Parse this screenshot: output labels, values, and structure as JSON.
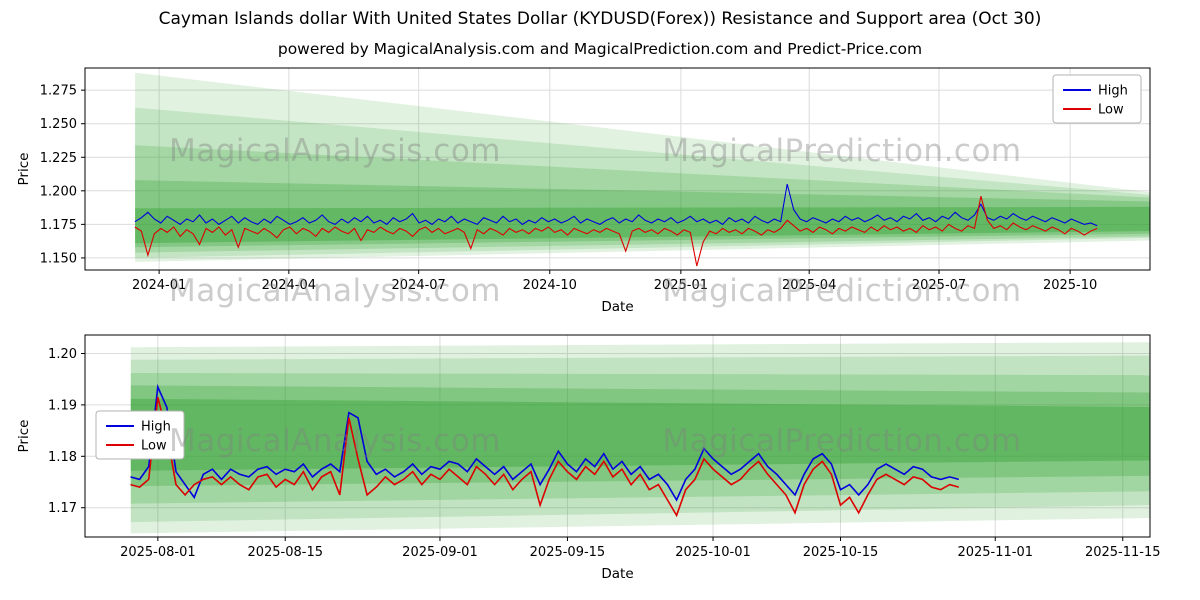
{
  "figure": {
    "title": "Cayman Islands dollar With United States Dollar (KYDUSD(Forex)) Resistance and Support area (Oct 30)",
    "subtitle": "powered by MagicalAnalysis.com and MagicalPrediction.com and Predict-Price.com",
    "watermark_left": "MagicalAnalysis.com",
    "watermark_right": "MagicalPrediction.com"
  },
  "chart_data": [
    {
      "type": "line",
      "title": "",
      "xlabel": "Date",
      "ylabel": "Price",
      "grid": true,
      "legend_pos": "upper-right",
      "line_width": 1.1,
      "ylim": [
        1.141,
        1.2915
      ],
      "x_ticks": [
        {
          "f": 0.0696,
          "label": "2024-01"
        },
        {
          "f": 0.1914,
          "label": "2024-04"
        },
        {
          "f": 0.3133,
          "label": "2024-07"
        },
        {
          "f": 0.4364,
          "label": "2024-10"
        },
        {
          "f": 0.5595,
          "label": "2025-01"
        },
        {
          "f": 0.68,
          "label": "2025-04"
        },
        {
          "f": 0.8019,
          "label": "2025-07"
        },
        {
          "f": 0.925,
          "label": "2025-10"
        }
      ],
      "y_ticks": [
        {
          "v": 1.15,
          "label": "1.150"
        },
        {
          "v": 1.175,
          "label": "1.175"
        },
        {
          "v": 1.2,
          "label": "1.200"
        },
        {
          "v": 1.225,
          "label": "1.225"
        },
        {
          "v": 1.25,
          "label": "1.250"
        },
        {
          "v": 1.275,
          "label": "1.275"
        }
      ],
      "bands": [
        {
          "name": "outer",
          "color": "#2ca02c",
          "opacity": 0.14,
          "points": [
            [
              0.047,
              1.288
            ],
            [
              1,
              1.199
            ],
            [
              1,
              1.163
            ],
            [
              0.047,
              1.147
            ]
          ]
        },
        {
          "name": "wide",
          "color": "#2ca02c",
          "opacity": 0.16,
          "points": [
            [
              0.047,
              1.262
            ],
            [
              1,
              1.197
            ],
            [
              1,
              1.165
            ],
            [
              0.047,
              1.15
            ]
          ]
        },
        {
          "name": "mid",
          "color": "#2ca02c",
          "opacity": 0.2,
          "points": [
            [
              0.047,
              1.234
            ],
            [
              1,
              1.195
            ],
            [
              1,
              1.166
            ],
            [
              0.047,
              1.154
            ]
          ]
        },
        {
          "name": "inner",
          "color": "#2ca02c",
          "opacity": 0.26,
          "points": [
            [
              0.047,
              1.208
            ],
            [
              1,
              1.192
            ],
            [
              1,
              1.168
            ],
            [
              0.047,
              1.158
            ]
          ]
        },
        {
          "name": "core",
          "color": "#2ca02c",
          "opacity": 0.38,
          "points": [
            [
              0.047,
              1.187
            ],
            [
              1,
              1.188
            ],
            [
              1,
              1.17
            ],
            [
              0.047,
              1.161
            ]
          ]
        }
      ],
      "series": [
        {
          "name": "High",
          "color": "#0000dd",
          "x_start": 0.0469,
          "x_end": 0.9504,
          "values": [
            1.177,
            1.18,
            1.184,
            1.179,
            1.176,
            1.181,
            1.178,
            1.175,
            1.179,
            1.177,
            1.182,
            1.176,
            1.179,
            1.175,
            1.178,
            1.181,
            1.176,
            1.18,
            1.177,
            1.175,
            1.179,
            1.176,
            1.181,
            1.178,
            1.175,
            1.177,
            1.18,
            1.176,
            1.178,
            1.182,
            1.177,
            1.175,
            1.179,
            1.176,
            1.18,
            1.177,
            1.181,
            1.176,
            1.178,
            1.175,
            1.18,
            1.177,
            1.179,
            1.183,
            1.176,
            1.178,
            1.175,
            1.179,
            1.177,
            1.181,
            1.176,
            1.179,
            1.177,
            1.175,
            1.18,
            1.178,
            1.176,
            1.181,
            1.177,
            1.179,
            1.175,
            1.178,
            1.176,
            1.18,
            1.177,
            1.179,
            1.176,
            1.178,
            1.181,
            1.176,
            1.179,
            1.177,
            1.175,
            1.178,
            1.18,
            1.176,
            1.179,
            1.177,
            1.182,
            1.178,
            1.176,
            1.179,
            1.177,
            1.18,
            1.176,
            1.178,
            1.181,
            1.177,
            1.179,
            1.176,
            1.178,
            1.175,
            1.18,
            1.177,
            1.179,
            1.176,
            1.181,
            1.178,
            1.176,
            1.179,
            1.177,
            1.205,
            1.186,
            1.179,
            1.177,
            1.18,
            1.178,
            1.176,
            1.179,
            1.177,
            1.181,
            1.178,
            1.18,
            1.177,
            1.179,
            1.182,
            1.178,
            1.18,
            1.177,
            1.181,
            1.179,
            1.183,
            1.178,
            1.18,
            1.177,
            1.181,
            1.179,
            1.184,
            1.18,
            1.178,
            1.182,
            1.19,
            1.18,
            1.178,
            1.181,
            1.179,
            1.183,
            1.18,
            1.178,
            1.181,
            1.179,
            1.177,
            1.18,
            1.178,
            1.176,
            1.179,
            1.177,
            1.175,
            1.176,
            1.174
          ]
        },
        {
          "name": "Low",
          "color": "#dd0000",
          "x_start": 0.0469,
          "x_end": 0.9504,
          "values": [
            1.173,
            1.17,
            1.152,
            1.168,
            1.172,
            1.169,
            1.173,
            1.166,
            1.171,
            1.168,
            1.16,
            1.172,
            1.169,
            1.173,
            1.167,
            1.171,
            1.158,
            1.172,
            1.17,
            1.168,
            1.172,
            1.169,
            1.165,
            1.171,
            1.173,
            1.168,
            1.172,
            1.17,
            1.166,
            1.172,
            1.169,
            1.173,
            1.17,
            1.168,
            1.172,
            1.163,
            1.171,
            1.169,
            1.173,
            1.17,
            1.168,
            1.172,
            1.17,
            1.166,
            1.171,
            1.173,
            1.169,
            1.172,
            1.168,
            1.17,
            1.172,
            1.169,
            1.157,
            1.171,
            1.168,
            1.172,
            1.17,
            1.167,
            1.172,
            1.169,
            1.171,
            1.168,
            1.172,
            1.17,
            1.173,
            1.169,
            1.171,
            1.167,
            1.172,
            1.17,
            1.168,
            1.171,
            1.169,
            1.172,
            1.17,
            1.168,
            1.155,
            1.17,
            1.172,
            1.169,
            1.171,
            1.168,
            1.172,
            1.17,
            1.167,
            1.171,
            1.169,
            1.144,
            1.162,
            1.17,
            1.168,
            1.172,
            1.169,
            1.171,
            1.168,
            1.172,
            1.17,
            1.167,
            1.171,
            1.169,
            1.172,
            1.178,
            1.174,
            1.17,
            1.172,
            1.169,
            1.173,
            1.171,
            1.168,
            1.172,
            1.17,
            1.173,
            1.171,
            1.169,
            1.173,
            1.17,
            1.174,
            1.171,
            1.173,
            1.17,
            1.172,
            1.169,
            1.174,
            1.171,
            1.173,
            1.17,
            1.175,
            1.172,
            1.17,
            1.174,
            1.172,
            1.196,
            1.178,
            1.172,
            1.174,
            1.171,
            1.176,
            1.173,
            1.171,
            1.174,
            1.172,
            1.17,
            1.173,
            1.171,
            1.168,
            1.172,
            1.17,
            1.167,
            1.17,
            1.172
          ]
        }
      ]
    },
    {
      "type": "line",
      "title": "",
      "xlabel": "Date",
      "ylabel": "Price",
      "grid": true,
      "legend_pos": "center-left",
      "line_width": 1.6,
      "ylim": [
        1.1643,
        1.2036
      ],
      "x_ticks": [
        {
          "f": 0.0684,
          "label": "2025-08-01"
        },
        {
          "f": 0.188,
          "label": "2025-08-15"
        },
        {
          "f": 0.3333,
          "label": "2025-09-01"
        },
        {
          "f": 0.453,
          "label": "2025-09-15"
        },
        {
          "f": 0.5897,
          "label": "2025-10-01"
        },
        {
          "f": 0.7094,
          "label": "2025-10-15"
        },
        {
          "f": 0.8547,
          "label": "2025-11-01"
        },
        {
          "f": 0.9744,
          "label": "2025-11-15"
        }
      ],
      "y_ticks": [
        {
          "v": 1.17,
          "label": "1.17"
        },
        {
          "v": 1.18,
          "label": "1.18"
        },
        {
          "v": 1.19,
          "label": "1.19"
        },
        {
          "v": 1.2,
          "label": "1.20"
        }
      ],
      "bands": [
        {
          "name": "outer",
          "color": "#2ca02c",
          "opacity": 0.15,
          "points": [
            [
              0.043,
              1.2012
            ],
            [
              1,
              1.2022
            ],
            [
              1,
              1.168
            ],
            [
              0.043,
              1.165
            ]
          ]
        },
        {
          "name": "wide",
          "color": "#2ca02c",
          "opacity": 0.17,
          "points": [
            [
              0.043,
              1.1988
            ],
            [
              1,
              1.1996
            ],
            [
              1,
              1.1705
            ],
            [
              0.043,
              1.1672
            ]
          ]
        },
        {
          "name": "mid",
          "color": "#2ca02c",
          "opacity": 0.21,
          "points": [
            [
              0.043,
              1.1962
            ],
            [
              1,
              1.1958
            ],
            [
              1,
              1.1732
            ],
            [
              0.043,
              1.1708
            ]
          ]
        },
        {
          "name": "inner",
          "color": "#2ca02c",
          "opacity": 0.27,
          "points": [
            [
              0.043,
              1.1938
            ],
            [
              1,
              1.1924
            ],
            [
              1,
              1.1762
            ],
            [
              0.043,
              1.1742
            ]
          ]
        },
        {
          "name": "core",
          "color": "#2ca02c",
          "opacity": 0.36,
          "points": [
            [
              0.043,
              1.1912
            ],
            [
              1,
              1.1896
            ],
            [
              1,
              1.1792
            ],
            [
              0.043,
              1.1772
            ]
          ]
        }
      ],
      "series": [
        {
          "name": "High",
          "color": "#0000dd",
          "x_start": 0.0427,
          "x_end": 0.8205,
          "values": [
            1.176,
            1.1755,
            1.178,
            1.1935,
            1.1895,
            1.177,
            1.1745,
            1.172,
            1.1765,
            1.1775,
            1.1755,
            1.1775,
            1.1765,
            1.176,
            1.1775,
            1.178,
            1.1765,
            1.1775,
            1.177,
            1.1785,
            1.176,
            1.1775,
            1.1785,
            1.177,
            1.1885,
            1.1875,
            1.179,
            1.1765,
            1.1775,
            1.176,
            1.177,
            1.1785,
            1.1765,
            1.178,
            1.1775,
            1.179,
            1.1785,
            1.177,
            1.1795,
            1.178,
            1.1765,
            1.178,
            1.1755,
            1.177,
            1.1785,
            1.1745,
            1.1775,
            1.181,
            1.1785,
            1.177,
            1.1795,
            1.178,
            1.1805,
            1.1775,
            1.179,
            1.1765,
            1.178,
            1.1755,
            1.1765,
            1.1745,
            1.1715,
            1.1755,
            1.1775,
            1.1815,
            1.1795,
            1.178,
            1.1765,
            1.1775,
            1.179,
            1.1805,
            1.178,
            1.1765,
            1.1745,
            1.1725,
            1.1765,
            1.1795,
            1.1805,
            1.1785,
            1.1735,
            1.1745,
            1.1725,
            1.1745,
            1.1775,
            1.1785,
            1.1775,
            1.1765,
            1.178,
            1.1775,
            1.176,
            1.1755,
            1.176,
            1.1755
          ]
        },
        {
          "name": "Low",
          "color": "#dd0000",
          "x_start": 0.0427,
          "x_end": 0.8205,
          "values": [
            1.1745,
            1.174,
            1.1755,
            1.1915,
            1.1845,
            1.1745,
            1.1725,
            1.1745,
            1.1755,
            1.176,
            1.1745,
            1.176,
            1.1745,
            1.1735,
            1.176,
            1.1765,
            1.174,
            1.1755,
            1.1745,
            1.177,
            1.1735,
            1.176,
            1.177,
            1.1725,
            1.1875,
            1.1795,
            1.1725,
            1.174,
            1.176,
            1.1745,
            1.1755,
            1.177,
            1.1745,
            1.1765,
            1.1755,
            1.1775,
            1.176,
            1.1745,
            1.178,
            1.1765,
            1.1745,
            1.1765,
            1.1735,
            1.1755,
            1.177,
            1.1705,
            1.1755,
            1.179,
            1.177,
            1.1755,
            1.178,
            1.1765,
            1.179,
            1.176,
            1.1775,
            1.1745,
            1.1765,
            1.1735,
            1.1745,
            1.1715,
            1.1685,
            1.1735,
            1.1755,
            1.1795,
            1.1775,
            1.176,
            1.1745,
            1.1755,
            1.1775,
            1.179,
            1.1765,
            1.1745,
            1.1725,
            1.169,
            1.1745,
            1.1775,
            1.179,
            1.1765,
            1.1705,
            1.172,
            1.169,
            1.1725,
            1.1755,
            1.1765,
            1.1755,
            1.1745,
            1.176,
            1.1755,
            1.174,
            1.1735,
            1.1745,
            1.174
          ]
        }
      ]
    }
  ]
}
